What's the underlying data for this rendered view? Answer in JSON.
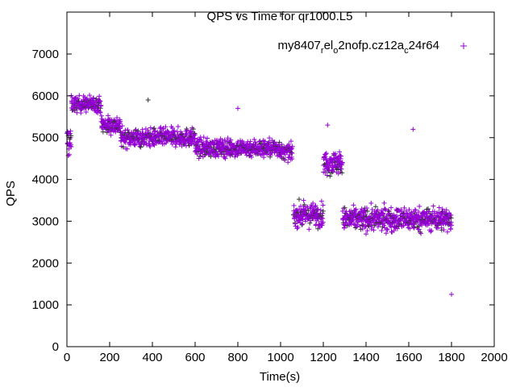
{
  "chart_data": {
    "type": "scatter",
    "title": "QPS vs Time for qr1000.L5",
    "xlabel": "Time(s)",
    "ylabel": "QPS",
    "xlim": [
      0,
      2000
    ],
    "ylim": [
      0,
      7400
    ],
    "xticks": [
      0,
      200,
      400,
      600,
      800,
      1000,
      1200,
      1400,
      1600,
      1800,
      2000
    ],
    "yticks": [
      0,
      1000,
      2000,
      3000,
      4000,
      5000,
      6000,
      7000
    ],
    "grid": false,
    "legend": {
      "position": "top-right",
      "label": "my8407_rel_o2nofp.cz12a_c24r64",
      "label_parts": [
        "my8407",
        "r",
        "el",
        "o",
        "2nofp.cz12a",
        "c",
        "24r64"
      ]
    },
    "series": [
      {
        "name": "my8407_rel_o2nofp.cz12a_c24r64",
        "color": "#9400d3",
        "marker": "+",
        "segments_note": "dense samples every ~1s; segments give [x_start, x_end, mean_qps, spread_qps]",
        "segments": [
          [
            0,
            20,
            4900,
            650
          ],
          [
            20,
            160,
            5800,
            300
          ],
          [
            160,
            250,
            5300,
            350
          ],
          [
            250,
            600,
            5000,
            350
          ],
          [
            600,
            1000,
            4750,
            350
          ],
          [
            1000,
            1055,
            4650,
            300
          ],
          [
            1060,
            1200,
            3150,
            450
          ],
          [
            1200,
            1290,
            4400,
            450
          ],
          [
            1290,
            1800,
            3050,
            450
          ]
        ],
        "outliers": [
          [
            1800,
            1250
          ],
          [
            1220,
            5300
          ],
          [
            1620,
            5200
          ],
          [
            800,
            5700
          ],
          [
            380,
            5900
          ],
          [
            1280,
            4300
          ]
        ]
      }
    ]
  }
}
